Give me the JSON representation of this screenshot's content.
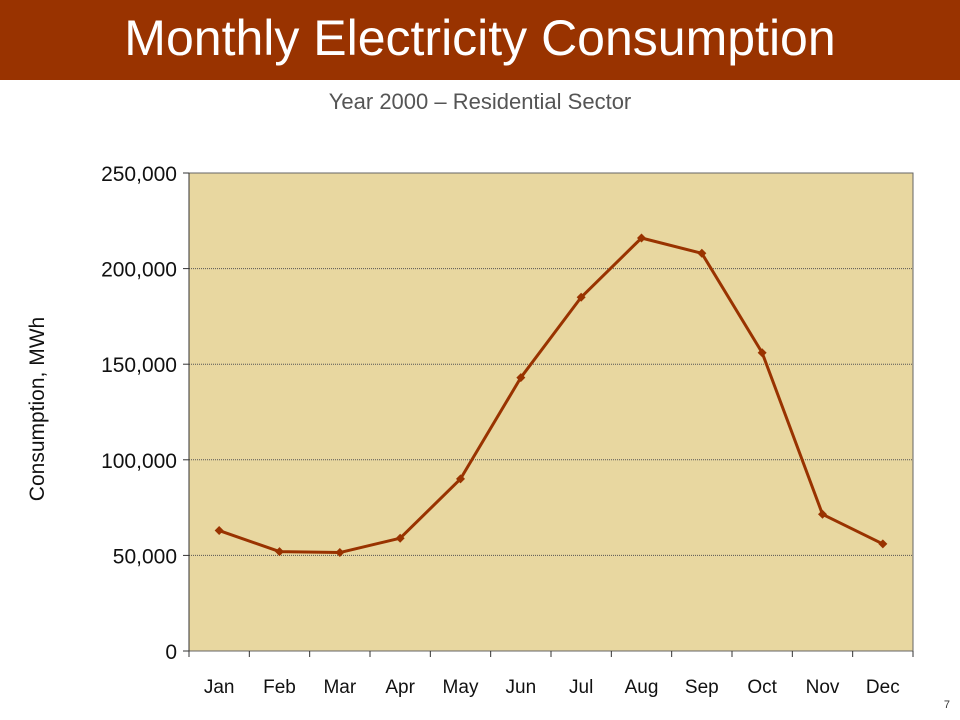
{
  "header": {
    "title": "Monthly Electricity Consumption",
    "subtitle": "Year 2000 – Residential Sector"
  },
  "footer": {
    "page_number": "7"
  },
  "colors": {
    "title_bar": "#993300",
    "plot_background": "#E8D7A0",
    "series_line": "#993300"
  },
  "chart_data": {
    "type": "line",
    "title": "Monthly Electricity Consumption",
    "subtitle": "Year 2000 – Residential Sector",
    "xlabel": "",
    "ylabel": "Consumption, MWh",
    "categories": [
      "Jan",
      "Feb",
      "Mar",
      "Apr",
      "May",
      "Jun",
      "Jul",
      "Aug",
      "Sep",
      "Oct",
      "Nov",
      "Dec"
    ],
    "series": [
      {
        "values": [
          63000,
          52000,
          51500,
          59000,
          90000,
          143000,
          185000,
          216000,
          208000,
          156000,
          71500,
          56000
        ]
      }
    ],
    "ylim": [
      0,
      250000
    ],
    "yticks": [
      0,
      50000,
      100000,
      150000,
      200000,
      250000
    ],
    "ytick_labels": [
      "0",
      "50,000",
      "100,000",
      "150,000",
      "200,000",
      "250,000"
    ],
    "grid": true,
    "legend": "none"
  }
}
